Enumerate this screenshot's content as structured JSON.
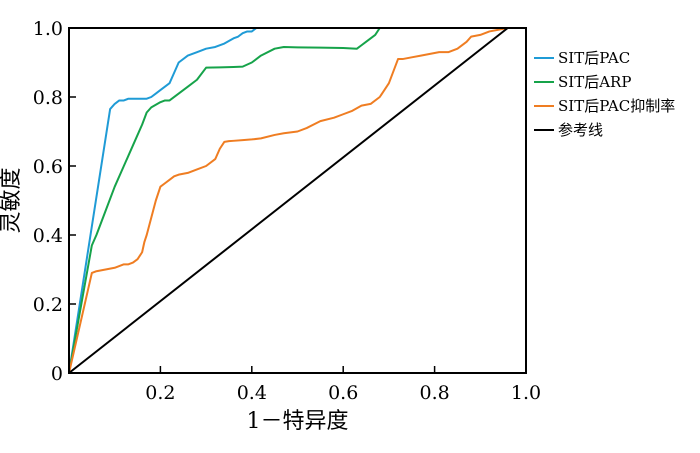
{
  "chart_data": {
    "type": "line",
    "xlabel": "1－特异度",
    "ylabel": "灵敏度",
    "xlim": [
      0,
      1
    ],
    "ylim": [
      0,
      1
    ],
    "x_ticks": [
      "0.2",
      "0.4",
      "0.6",
      "0.8",
      "1.0"
    ],
    "y_ticks": [
      "0",
      "0.2",
      "0.4",
      "0.6",
      "0.8",
      "1.0"
    ],
    "grid": false,
    "legend_position": "right",
    "series": [
      {
        "name": "SIT后PAC",
        "color": "#1f9bd6",
        "x": [
          0,
          0.09,
          0.1,
          0.11,
          0.12,
          0.13,
          0.15,
          0.17,
          0.18,
          0.19,
          0.2,
          0.22,
          0.23,
          0.24,
          0.26,
          0.28,
          0.3,
          0.32,
          0.34,
          0.36,
          0.37,
          0.38,
          0.39,
          0.4,
          0.41,
          0.42,
          0.96
        ],
        "y": [
          0,
          0.765,
          0.78,
          0.79,
          0.79,
          0.795,
          0.795,
          0.795,
          0.8,
          0.81,
          0.82,
          0.84,
          0.87,
          0.9,
          0.92,
          0.93,
          0.94,
          0.945,
          0.955,
          0.97,
          0.975,
          0.985,
          0.99,
          0.99,
          1.0,
          1.0,
          1.0
        ]
      },
      {
        "name": "SIT后ARP",
        "color": "#16a34a",
        "x": [
          0,
          0.05,
          0.06,
          0.08,
          0.1,
          0.12,
          0.14,
          0.16,
          0.17,
          0.18,
          0.2,
          0.21,
          0.22,
          0.24,
          0.26,
          0.28,
          0.3,
          0.33,
          0.36,
          0.38,
          0.4,
          0.42,
          0.45,
          0.47,
          0.5,
          0.55,
          0.6,
          0.63,
          0.64,
          0.65,
          0.67,
          0.68,
          0.96
        ],
        "y": [
          0,
          0.37,
          0.4,
          0.47,
          0.54,
          0.6,
          0.66,
          0.72,
          0.755,
          0.77,
          0.785,
          0.79,
          0.79,
          0.81,
          0.83,
          0.85,
          0.885,
          0.886,
          0.887,
          0.888,
          0.9,
          0.92,
          0.94,
          0.945,
          0.944,
          0.943,
          0.942,
          0.94,
          0.95,
          0.96,
          0.98,
          1.0,
          1.0
        ]
      },
      {
        "name": "SIT后PAC抑制率",
        "color": "#ef7d22",
        "x": [
          0,
          0.05,
          0.06,
          0.08,
          0.1,
          0.11,
          0.12,
          0.13,
          0.14,
          0.15,
          0.16,
          0.165,
          0.17,
          0.18,
          0.19,
          0.2,
          0.21,
          0.22,
          0.23,
          0.24,
          0.26,
          0.28,
          0.3,
          0.32,
          0.33,
          0.34,
          0.35,
          0.36,
          0.38,
          0.4,
          0.42,
          0.45,
          0.47,
          0.5,
          0.52,
          0.55,
          0.58,
          0.6,
          0.62,
          0.64,
          0.66,
          0.68,
          0.7,
          0.72,
          0.73,
          0.75,
          0.77,
          0.79,
          0.81,
          0.83,
          0.85,
          0.87,
          0.88,
          0.9,
          0.92,
          0.96
        ],
        "y": [
          0,
          0.29,
          0.295,
          0.3,
          0.305,
          0.31,
          0.315,
          0.315,
          0.32,
          0.33,
          0.35,
          0.38,
          0.4,
          0.45,
          0.5,
          0.54,
          0.55,
          0.56,
          0.57,
          0.575,
          0.58,
          0.59,
          0.6,
          0.62,
          0.65,
          0.67,
          0.672,
          0.673,
          0.675,
          0.677,
          0.68,
          0.69,
          0.695,
          0.7,
          0.71,
          0.73,
          0.74,
          0.75,
          0.76,
          0.775,
          0.78,
          0.8,
          0.84,
          0.91,
          0.91,
          0.915,
          0.92,
          0.925,
          0.93,
          0.93,
          0.94,
          0.96,
          0.975,
          0.98,
          0.99,
          1.0
        ]
      },
      {
        "name": "参考线",
        "color": "#000000",
        "x": [
          0,
          0.96
        ],
        "y": [
          0,
          1.0
        ]
      }
    ]
  }
}
